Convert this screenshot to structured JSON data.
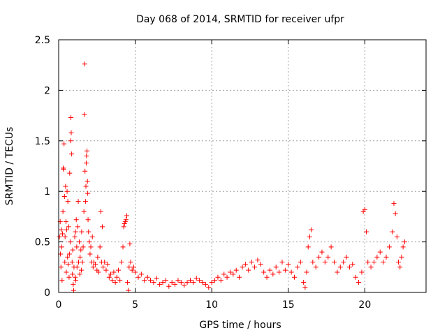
{
  "chart_data": {
    "type": "scatter",
    "title": "Day 068 of 2014, SRMTID for receiver ufpr",
    "xlabel": "GPS time / hours",
    "ylabel": "SRMTID / TECUs",
    "xlim": [
      0,
      24
    ],
    "ylim": [
      0,
      2.5
    ],
    "xticks": [
      0,
      5,
      10,
      15,
      20
    ],
    "xtick_labels": [
      "0",
      "5",
      "10",
      "15",
      "20"
    ],
    "yticks": [
      0,
      0.5,
      1,
      1.5,
      2,
      2.5
    ],
    "ytick_labels": [
      "0",
      "0.5",
      "1",
      "1.5",
      "2",
      "2.5"
    ],
    "grid": true,
    "marker": "+",
    "colors": {
      "points": "#ff0000",
      "grid": "#a0a0a0",
      "axes": "#000000"
    },
    "series": [
      {
        "name": "SRMTID",
        "points": [
          [
            0.05,
            0.55
          ],
          [
            0.1,
            0.7
          ],
          [
            0.12,
            0.38
          ],
          [
            0.15,
            0.25
          ],
          [
            0.18,
            0.62
          ],
          [
            0.2,
            0.45
          ],
          [
            0.22,
            0.12
          ],
          [
            0.25,
            0.58
          ],
          [
            0.28,
            0.8
          ],
          [
            0.3,
            1.23
          ],
          [
            0.32,
            1.22
          ],
          [
            0.35,
            1.47
          ],
          [
            0.38,
            0.95
          ],
          [
            0.4,
            0.3
          ],
          [
            0.42,
            0.55
          ],
          [
            0.45,
            1.05
          ],
          [
            0.48,
            0.7
          ],
          [
            0.5,
            0.2
          ],
          [
            0.52,
            0.62
          ],
          [
            0.55,
            1.0
          ],
          [
            0.58,
            0.35
          ],
          [
            0.6,
            0.9
          ],
          [
            0.62,
            0.28
          ],
          [
            0.65,
            0.65
          ],
          [
            0.68,
            0.15
          ],
          [
            0.7,
            0.38
          ],
          [
            0.72,
            1.18
          ],
          [
            0.75,
            0.5
          ],
          [
            0.78,
            1.5
          ],
          [
            0.8,
            1.73
          ],
          [
            0.82,
            1.58
          ],
          [
            0.85,
            1.37
          ],
          [
            0.88,
            0.3
          ],
          [
            0.9,
            0.18
          ],
          [
            0.92,
            0.42
          ],
          [
            0.95,
            0.08
          ],
          [
            0.98,
            0.02
          ],
          [
            1.0,
            0.25
          ],
          [
            1.05,
            0.55
          ],
          [
            1.08,
            0.15
          ],
          [
            1.1,
            0.6
          ],
          [
            1.12,
            0.12
          ],
          [
            1.15,
            0.72
          ],
          [
            1.18,
            0.45
          ],
          [
            1.2,
            0.25
          ],
          [
            1.25,
            0.65
          ],
          [
            1.28,
            0.9
          ],
          [
            1.3,
            0.3
          ],
          [
            1.35,
            0.5
          ],
          [
            1.38,
            0.18
          ],
          [
            1.4,
            0.35
          ],
          [
            1.45,
            0.42
          ],
          [
            1.48,
            0.22
          ],
          [
            1.5,
            0.6
          ],
          [
            1.55,
            0.3
          ],
          [
            1.6,
            0.45
          ],
          [
            1.65,
            0.8
          ],
          [
            1.68,
            1.76
          ],
          [
            1.7,
            2.26
          ],
          [
            1.72,
            1.2
          ],
          [
            1.75,
            0.9
          ],
          [
            1.78,
            1.05
          ],
          [
            1.8,
            1.28
          ],
          [
            1.82,
            1.35
          ],
          [
            1.85,
            1.4
          ],
          [
            1.88,
            1.1
          ],
          [
            1.9,
            0.98
          ],
          [
            1.92,
            0.72
          ],
          [
            1.95,
            0.6
          ],
          [
            2.0,
            0.5
          ],
          [
            2.05,
            0.38
          ],
          [
            2.1,
            0.45
          ],
          [
            2.15,
            0.3
          ],
          [
            2.2,
            0.55
          ],
          [
            2.25,
            0.25
          ],
          [
            2.3,
            0.3
          ],
          [
            2.4,
            0.28
          ],
          [
            2.5,
            0.22
          ],
          [
            2.55,
            0.35
          ],
          [
            2.6,
            0.2
          ],
          [
            2.7,
            0.45
          ],
          [
            2.75,
            0.8
          ],
          [
            2.8,
            0.3
          ],
          [
            2.85,
            0.65
          ],
          [
            2.9,
            0.25
          ],
          [
            3.0,
            0.3
          ],
          [
            3.1,
            0.22
          ],
          [
            3.2,
            0.28
          ],
          [
            3.3,
            0.15
          ],
          [
            3.4,
            0.18
          ],
          [
            3.5,
            0.12
          ],
          [
            3.6,
            0.2
          ],
          [
            3.7,
            0.1
          ],
          [
            3.8,
            0.15
          ],
          [
            3.9,
            0.22
          ],
          [
            4.0,
            0.12
          ],
          [
            4.1,
            0.3
          ],
          [
            4.2,
            0.45
          ],
          [
            4.25,
            0.65
          ],
          [
            4.3,
            0.68
          ],
          [
            4.35,
            0.7
          ],
          [
            4.4,
            0.72
          ],
          [
            4.45,
            0.76
          ],
          [
            4.5,
            0.1
          ],
          [
            4.55,
            0.02
          ],
          [
            4.6,
            0.25
          ],
          [
            4.65,
            0.48
          ],
          [
            4.7,
            0.3
          ],
          [
            4.8,
            0.22
          ],
          [
            4.9,
            0.25
          ],
          [
            5.0,
            0.2
          ],
          [
            5.2,
            0.15
          ],
          [
            5.4,
            0.18
          ],
          [
            5.6,
            0.12
          ],
          [
            5.8,
            0.15
          ],
          [
            6.0,
            0.12
          ],
          [
            6.2,
            0.1
          ],
          [
            6.4,
            0.14
          ],
          [
            6.6,
            0.08
          ],
          [
            6.8,
            0.1
          ],
          [
            7.0,
            0.12
          ],
          [
            7.2,
            0.06
          ],
          [
            7.4,
            0.1
          ],
          [
            7.6,
            0.08
          ],
          [
            7.8,
            0.12
          ],
          [
            8.0,
            0.1
          ],
          [
            8.2,
            0.07
          ],
          [
            8.4,
            0.1
          ],
          [
            8.6,
            0.12
          ],
          [
            8.8,
            0.1
          ],
          [
            9.0,
            0.14
          ],
          [
            9.2,
            0.12
          ],
          [
            9.4,
            0.1
          ],
          [
            9.6,
            0.08
          ],
          [
            9.8,
            0.05
          ],
          [
            10.0,
            0.1
          ],
          [
            10.2,
            0.12
          ],
          [
            10.4,
            0.15
          ],
          [
            10.6,
            0.12
          ],
          [
            10.8,
            0.18
          ],
          [
            11.0,
            0.15
          ],
          [
            11.2,
            0.2
          ],
          [
            11.4,
            0.18
          ],
          [
            11.6,
            0.22
          ],
          [
            11.8,
            0.15
          ],
          [
            12.0,
            0.25
          ],
          [
            12.2,
            0.28
          ],
          [
            12.4,
            0.22
          ],
          [
            12.6,
            0.3
          ],
          [
            12.8,
            0.25
          ],
          [
            13.0,
            0.32
          ],
          [
            13.2,
            0.28
          ],
          [
            13.4,
            0.2
          ],
          [
            13.6,
            0.15
          ],
          [
            13.8,
            0.22
          ],
          [
            14.0,
            0.18
          ],
          [
            14.2,
            0.25
          ],
          [
            14.4,
            0.2
          ],
          [
            14.6,
            0.3
          ],
          [
            14.8,
            0.22
          ],
          [
            15.0,
            0.28
          ],
          [
            15.2,
            0.2
          ],
          [
            15.4,
            0.15
          ],
          [
            15.6,
            0.25
          ],
          [
            15.8,
            0.3
          ],
          [
            16.0,
            0.1
          ],
          [
            16.1,
            0.05
          ],
          [
            16.2,
            0.2
          ],
          [
            16.3,
            0.45
          ],
          [
            16.4,
            0.55
          ],
          [
            16.5,
            0.62
          ],
          [
            16.6,
            0.3
          ],
          [
            16.8,
            0.25
          ],
          [
            17.0,
            0.35
          ],
          [
            17.2,
            0.4
          ],
          [
            17.4,
            0.3
          ],
          [
            17.6,
            0.35
          ],
          [
            17.8,
            0.45
          ],
          [
            18.0,
            0.3
          ],
          [
            18.2,
            0.2
          ],
          [
            18.4,
            0.25
          ],
          [
            18.6,
            0.3
          ],
          [
            18.8,
            0.35
          ],
          [
            19.0,
            0.25
          ],
          [
            19.2,
            0.28
          ],
          [
            19.4,
            0.15
          ],
          [
            19.6,
            0.1
          ],
          [
            19.8,
            0.2
          ],
          [
            19.9,
            0.8
          ],
          [
            20.0,
            0.82
          ],
          [
            20.1,
            0.6
          ],
          [
            20.2,
            0.3
          ],
          [
            20.4,
            0.25
          ],
          [
            20.6,
            0.3
          ],
          [
            20.8,
            0.35
          ],
          [
            21.0,
            0.4
          ],
          [
            21.2,
            0.3
          ],
          [
            21.4,
            0.35
          ],
          [
            21.6,
            0.45
          ],
          [
            21.8,
            0.6
          ],
          [
            21.9,
            0.88
          ],
          [
            22.0,
            0.78
          ],
          [
            22.1,
            0.55
          ],
          [
            22.2,
            0.3
          ],
          [
            22.3,
            0.25
          ],
          [
            22.4,
            0.35
          ],
          [
            22.5,
            0.45
          ],
          [
            22.6,
            0.5
          ]
        ]
      }
    ]
  }
}
